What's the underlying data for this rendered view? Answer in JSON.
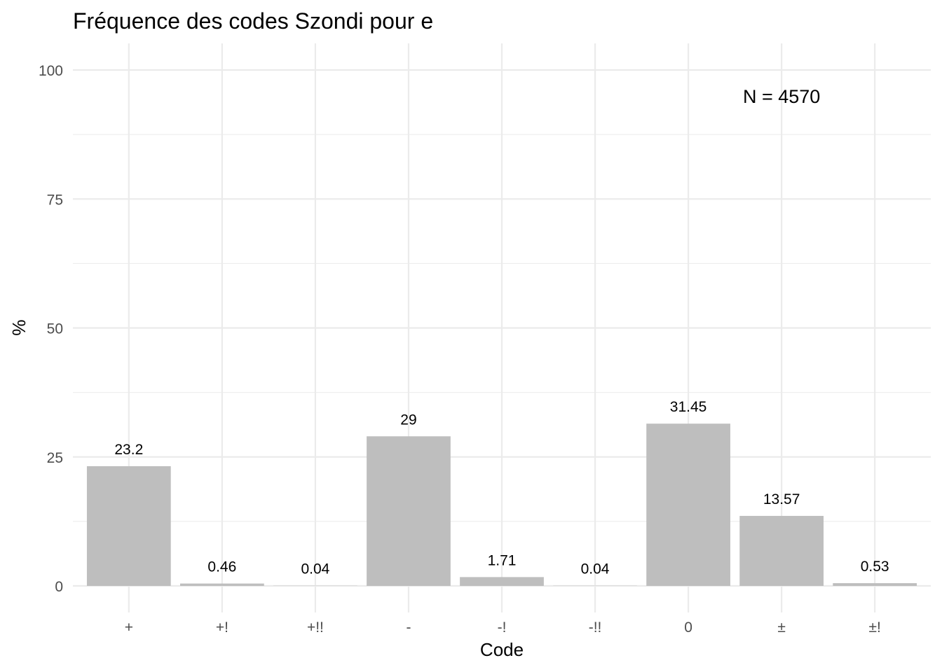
{
  "chart_data": {
    "type": "bar",
    "title": "Fréquence des codes Szondi pour e",
    "xlabel": "Code",
    "ylabel": "%",
    "categories": [
      "+",
      "+!",
      "+!!",
      "-",
      "-!",
      "-!!",
      "0",
      "±",
      "±!"
    ],
    "values": [
      23.2,
      0.46,
      0.04,
      29,
      1.71,
      0.04,
      31.45,
      13.57,
      0.53
    ],
    "data_labels": [
      "23.2",
      "0.46",
      "0.04",
      "29",
      "1.71",
      "0.04",
      "31.45",
      "13.57",
      "0.53"
    ],
    "ylim": [
      0,
      100
    ],
    "yticks": [
      0,
      25,
      50,
      75,
      100
    ],
    "yticks_minor": [
      12.5,
      37.5,
      62.5,
      87.5
    ],
    "ytick_labels": [
      "0",
      "25",
      "50",
      "75",
      "100"
    ],
    "grid": true,
    "legend": "none",
    "bar_color": "#bebebe",
    "annotation": "N = 4570",
    "annotation_position": {
      "x_category": "±",
      "y": 95
    }
  }
}
